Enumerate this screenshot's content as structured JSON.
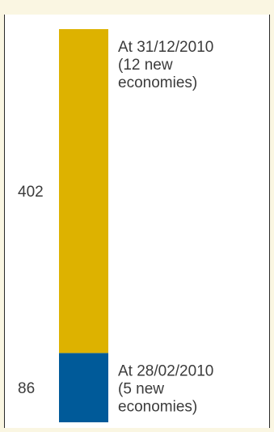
{
  "chart_data": {
    "type": "bar",
    "stacked": true,
    "categories": [
      ""
    ],
    "series": [
      {
        "values": [
          86
        ],
        "color": "#005a99",
        "value_label": "86",
        "annotation": [
          "At 28/02/2010",
          "(5 new",
          "economies)"
        ]
      },
      {
        "values": [
          402
        ],
        "color": "#ddb200",
        "value_label": "402",
        "annotation": [
          "At 31/12/2010",
          "(12 new",
          "economies)"
        ]
      }
    ],
    "title": "",
    "xlabel": "",
    "ylabel": ""
  }
}
